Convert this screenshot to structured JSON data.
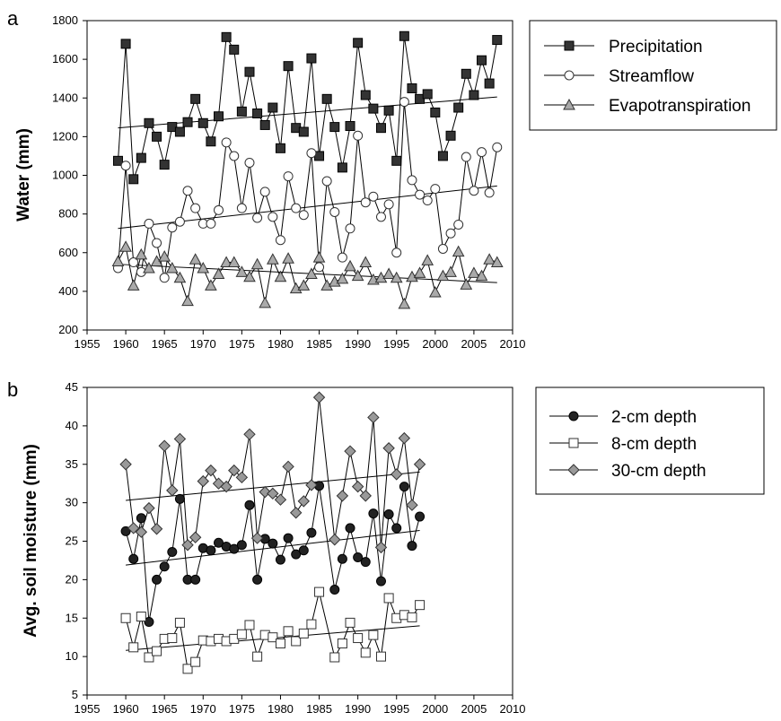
{
  "chart_data": [
    {
      "panel": "a",
      "type": "line",
      "title": "",
      "xlabel": "",
      "ylabel": "Water (mm)",
      "xlim": [
        1955,
        2010
      ],
      "ylim": [
        200,
        1800
      ],
      "xticks": [
        "1955",
        "1960",
        "1965",
        "1970",
        "1975",
        "1980",
        "1985",
        "1990",
        "1995",
        "2000",
        "2005",
        "2010"
      ],
      "yticks": [
        "200",
        "400",
        "600",
        "800",
        "1000",
        "1200",
        "1400",
        "1600",
        "1800"
      ],
      "grid": false,
      "legend_position": "top-right-outside",
      "series": [
        {
          "name": "Precipitation",
          "marker": "square-filled",
          "color": "#333333",
          "x": [
            1959,
            1960,
            1961,
            1962,
            1963,
            1964,
            1965,
            1966,
            1967,
            1968,
            1969,
            1970,
            1971,
            1972,
            1973,
            1974,
            1975,
            1976,
            1977,
            1978,
            1979,
            1980,
            1981,
            1982,
            1983,
            1984,
            1985,
            1986,
            1987,
            1988,
            1989,
            1990,
            1991,
            1992,
            1993,
            1994,
            1995,
            1996,
            1997,
            1998,
            1999,
            2000,
            2001,
            2002,
            2003,
            2004,
            2005,
            2006,
            2007,
            2008
          ],
          "y": [
            1075,
            1680,
            980,
            1090,
            1270,
            1200,
            1055,
            1250,
            1225,
            1275,
            1395,
            1270,
            1175,
            1305,
            1715,
            1650,
            1330,
            1535,
            1320,
            1260,
            1350,
            1140,
            1565,
            1245,
            1225,
            1605,
            1100,
            1395,
            1250,
            1040,
            1255,
            1685,
            1415,
            1345,
            1245,
            1335,
            1075,
            1720,
            1450,
            1395,
            1420,
            1325,
            1100,
            1205,
            1350,
            1525,
            1415,
            1595,
            1475,
            1700
          ],
          "trend": [
            [
              1959,
              1245
            ],
            [
              2008,
              1405
            ]
          ]
        },
        {
          "name": "Streamflow",
          "marker": "circle-open",
          "color": "#333333",
          "x": [
            1959,
            1960,
            1961,
            1962,
            1963,
            1964,
            1965,
            1966,
            1967,
            1968,
            1969,
            1970,
            1971,
            1972,
            1973,
            1974,
            1975,
            1976,
            1977,
            1978,
            1979,
            1980,
            1981,
            1982,
            1983,
            1984,
            1985,
            1986,
            1987,
            1988,
            1989,
            1990,
            1991,
            1992,
            1993,
            1994,
            1995,
            1996,
            1997,
            1998,
            1999,
            2000,
            2001,
            2002,
            2003,
            2004,
            2005,
            2006,
            2007,
            2008
          ],
          "y": [
            520,
            1050,
            550,
            500,
            750,
            650,
            470,
            730,
            760,
            920,
            830,
            750,
            750,
            820,
            1170,
            1100,
            830,
            1065,
            780,
            915,
            785,
            665,
            995,
            830,
            795,
            1115,
            525,
            970,
            810,
            575,
            725,
            1205,
            860,
            890,
            785,
            850,
            600,
            1380,
            975,
            900,
            870,
            930,
            620,
            700,
            745,
            1095,
            920,
            1120,
            910,
            1145
          ],
          "trend": [
            [
              1959,
              725
            ],
            [
              2008,
              945
            ]
          ]
        },
        {
          "name": "Evapotranspiration",
          "marker": "triangle-filled",
          "color": "#aaaaaa",
          "x": [
            1959,
            1960,
            1961,
            1962,
            1963,
            1964,
            1965,
            1966,
            1967,
            1968,
            1969,
            1970,
            1971,
            1972,
            1973,
            1974,
            1975,
            1976,
            1977,
            1978,
            1979,
            1980,
            1981,
            1982,
            1983,
            1984,
            1985,
            1986,
            1987,
            1988,
            1989,
            1990,
            1991,
            1992,
            1993,
            1994,
            1995,
            1996,
            1997,
            1998,
            1999,
            2000,
            2001,
            2002,
            2003,
            2004,
            2005,
            2006,
            2007,
            2008
          ],
          "y": [
            555,
            630,
            430,
            590,
            520,
            555,
            580,
            520,
            470,
            350,
            565,
            520,
            430,
            490,
            550,
            550,
            500,
            475,
            540,
            340,
            565,
            475,
            570,
            415,
            430,
            490,
            575,
            430,
            450,
            465,
            530,
            480,
            550,
            460,
            470,
            490,
            470,
            335,
            475,
            495,
            560,
            395,
            480,
            500,
            605,
            435,
            495,
            480,
            565,
            550
          ],
          "trend": [
            [
              1959,
              540
            ],
            [
              2008,
              445
            ]
          ]
        }
      ]
    },
    {
      "panel": "b",
      "type": "line",
      "title": "",
      "xlabel": "",
      "ylabel": "Avg. soil moisture (mm)",
      "xlim": [
        1955,
        2010
      ],
      "ylim": [
        5,
        45
      ],
      "xticks": [
        "1955",
        "1960",
        "1965",
        "1970",
        "1975",
        "1980",
        "1985",
        "1990",
        "1995",
        "2000",
        "2005",
        "2010"
      ],
      "yticks": [
        "5",
        "10",
        "15",
        "20",
        "25",
        "30",
        "35",
        "40",
        "45"
      ],
      "grid": false,
      "legend_position": "top-right-outside",
      "series": [
        {
          "name": "2-cm depth",
          "marker": "circle-filled",
          "color": "#222222",
          "x": [
            1960,
            1961,
            1962,
            1963,
            1964,
            1965,
            1966,
            1967,
            1968,
            1969,
            1970,
            1971,
            1972,
            1973,
            1974,
            1975,
            1976,
            1977,
            1978,
            1979,
            1980,
            1981,
            1982,
            1983,
            1984,
            1985,
            1987,
            1988,
            1989,
            1990,
            1991,
            1992,
            1993,
            1994,
            1995,
            1996,
            1997,
            1998
          ],
          "y": [
            26.3,
            22.7,
            28.0,
            14.5,
            20.0,
            21.7,
            23.6,
            30.5,
            20.0,
            20.0,
            24.1,
            23.8,
            24.8,
            24.3,
            24.0,
            24.5,
            29.7,
            20.0,
            25.3,
            24.7,
            22.6,
            25.4,
            23.3,
            23.8,
            26.1,
            32.2,
            18.7,
            22.7,
            26.7,
            22.9,
            22.3,
            28.6,
            19.8,
            28.5,
            26.7,
            32.1,
            24.4,
            28.2
          ],
          "trend": [
            [
              1960,
              21.9
            ],
            [
              1998,
              26.4
            ]
          ]
        },
        {
          "name": "8-cm depth",
          "marker": "square-open",
          "color": "#333333",
          "x": [
            1960,
            1961,
            1962,
            1963,
            1964,
            1965,
            1966,
            1967,
            1968,
            1969,
            1970,
            1971,
            1972,
            1973,
            1974,
            1975,
            1976,
            1977,
            1978,
            1979,
            1980,
            1981,
            1982,
            1983,
            1984,
            1985,
            1987,
            1988,
            1989,
            1990,
            1991,
            1992,
            1993,
            1994,
            1995,
            1996,
            1997,
            1998
          ],
          "y": [
            15.0,
            11.2,
            15.2,
            9.9,
            10.7,
            12.3,
            12.4,
            14.4,
            8.4,
            9.3,
            12.1,
            12.0,
            12.3,
            12.0,
            12.3,
            12.9,
            14.1,
            10.0,
            12.8,
            12.5,
            11.7,
            13.3,
            12.0,
            13.0,
            14.2,
            18.4,
            9.9,
            11.7,
            14.4,
            12.4,
            10.5,
            12.8,
            10.0,
            17.6,
            15.0,
            15.4,
            15.1,
            16.7
          ],
          "trend": [
            [
              1960,
              10.8
            ],
            [
              1998,
              14.0
            ]
          ]
        },
        {
          "name": "30-cm depth",
          "marker": "diamond-filled",
          "color": "#999999",
          "x": [
            1960,
            1961,
            1962,
            1963,
            1964,
            1965,
            1966,
            1967,
            1968,
            1969,
            1970,
            1971,
            1972,
            1973,
            1974,
            1975,
            1976,
            1977,
            1978,
            1979,
            1980,
            1981,
            1982,
            1983,
            1984,
            1985,
            1987,
            1988,
            1989,
            1990,
            1991,
            1992,
            1993,
            1994,
            1995,
            1996,
            1997,
            1998
          ],
          "y": [
            35.0,
            26.7,
            26.2,
            29.3,
            26.6,
            37.4,
            31.6,
            38.3,
            24.5,
            25.5,
            32.8,
            34.2,
            32.5,
            32.1,
            34.2,
            33.3,
            38.9,
            25.4,
            31.4,
            31.2,
            30.4,
            34.7,
            28.7,
            30.2,
            32.3,
            43.7,
            25.2,
            30.9,
            36.7,
            32.1,
            30.9,
            41.1,
            24.2,
            37.1,
            33.7,
            38.4,
            29.7,
            35.0
          ],
          "trend": [
            [
              1960,
              30.3
            ],
            [
              1998,
              34.0
            ]
          ]
        }
      ]
    }
  ]
}
